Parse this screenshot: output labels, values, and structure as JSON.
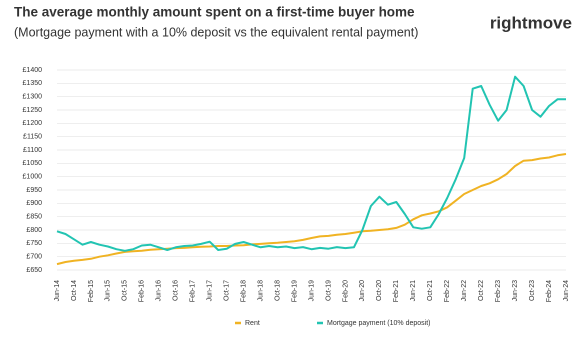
{
  "brand": "rightmove",
  "chart_data": {
    "type": "line",
    "title": "The average monthly amount spent on a first-time buyer home",
    "subtitle": "(Mortgage payment with a 10% deposit vs the equivalent rental payment)",
    "categories": [
      "Jun-14",
      null,
      "Oct-14",
      null,
      "Feb-15",
      null,
      "Jun-15",
      null,
      "Oct-15",
      null,
      "Feb-16",
      null,
      "Jun-16",
      null,
      "Oct-16",
      null,
      "Feb-17",
      null,
      "Jun-17",
      null,
      "Oct-17",
      null,
      "Feb-18",
      null,
      "Jun-18",
      null,
      "Oct-18",
      null,
      "Feb-19",
      null,
      "Jun-19",
      null,
      "Oct-19",
      null,
      "Feb-20",
      null,
      "Jun-20",
      null,
      "Oct-20",
      null,
      "Feb-21",
      null,
      "Jun-21",
      null,
      "Oct-21",
      null,
      "Feb-22",
      null,
      "Jun-22",
      null,
      "Oct-22",
      null,
      "Feb-23",
      null,
      "Jun-23",
      null,
      "Oct-23",
      null,
      "Feb-24",
      null,
      "Jun-24"
    ],
    "series": [
      {
        "name": "Rent",
        "color": "#f0b323",
        "values": [
          672,
          680,
          685,
          688,
          692,
          700,
          705,
          712,
          718,
          720,
          722,
          726,
          728,
          730,
          732,
          733,
          735,
          737,
          738,
          740,
          740,
          742,
          743,
          746,
          748,
          750,
          752,
          755,
          758,
          763,
          770,
          776,
          778,
          782,
          785,
          790,
          795,
          797,
          800,
          803,
          808,
          820,
          840,
          855,
          862,
          870,
          885,
          910,
          935,
          950,
          965,
          975,
          990,
          1010,
          1040,
          1060,
          1062,
          1068,
          1072,
          1080,
          1085
        ]
      },
      {
        "name": "Mortgage payment (10% deposit)",
        "color": "#22c4b2",
        "values": [
          795,
          785,
          765,
          745,
          755,
          745,
          738,
          728,
          722,
          728,
          742,
          745,
          735,
          725,
          735,
          740,
          742,
          748,
          756,
          725,
          730,
          748,
          755,
          745,
          735,
          740,
          735,
          738,
          732,
          736,
          728,
          733,
          730,
          736,
          732,
          735,
          800,
          890,
          925,
          895,
          905,
          860,
          810,
          805,
          810,
          860,
          920,
          990,
          1070,
          1330,
          1340,
          1270,
          1210,
          1250,
          1375,
          1340,
          1250,
          1225,
          1265,
          1290,
          1290
        ]
      }
    ],
    "ylim": [
      650,
      1400
    ],
    "yticks": [
      {
        "value": 650,
        "label": "£650"
      },
      {
        "value": 700,
        "label": "£700"
      },
      {
        "value": 750,
        "label": "£750"
      },
      {
        "value": 800,
        "label": "£800"
      },
      {
        "value": 850,
        "label": "£850"
      },
      {
        "value": 900,
        "label": "£900"
      },
      {
        "value": 950,
        "label": "£950"
      },
      {
        "value": 1000,
        "label": "£1000"
      },
      {
        "value": 1050,
        "label": "£1050"
      },
      {
        "value": 1100,
        "label": "£1100"
      },
      {
        "value": 1150,
        "label": "£1150"
      },
      {
        "value": 1200,
        "label": "£1200"
      },
      {
        "value": 1250,
        "label": "£1250"
      },
      {
        "value": 1300,
        "label": "£1300"
      },
      {
        "value": 1350,
        "label": "£1350"
      },
      {
        "value": 1400,
        "label": "£1400"
      }
    ],
    "grid": true,
    "legend": "bottom"
  }
}
